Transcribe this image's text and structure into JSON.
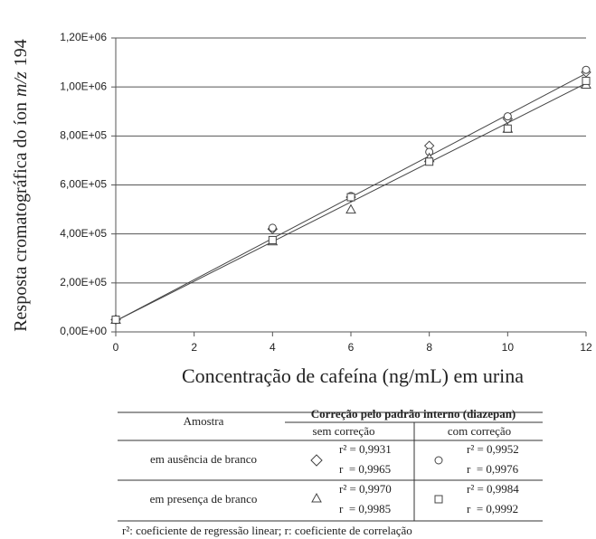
{
  "chart_data": {
    "type": "scatter",
    "y_label": [
      "Resposta cromatográfica do íon",
      "m/z",
      "194"
    ],
    "x_label": "Concentração de cafeína (ng/mL) em urina",
    "x": [
      0,
      4,
      6,
      8,
      10,
      12
    ],
    "series": [
      {
        "marker": "diamond",
        "color": "#444444",
        "values": [
          50000,
          420000,
          550000,
          760000,
          870000,
          1060000
        ]
      },
      {
        "marker": "circle",
        "color": "#444444",
        "values": [
          50000,
          425000,
          555000,
          735000,
          880000,
          1070000
        ]
      },
      {
        "marker": "triangle",
        "color": "#444444",
        "values": [
          50000,
          370000,
          500000,
          710000,
          830000,
          1010000
        ]
      },
      {
        "marker": "square",
        "color": "#444444",
        "values": [
          50000,
          375000,
          550000,
          695000,
          830000,
          1025000
        ]
      }
    ],
    "fit_lines": [
      {
        "x": [
          0,
          12
        ],
        "values": [
          45000,
          1055000
        ]
      },
      {
        "x": [
          0,
          12
        ],
        "values": [
          45000,
          1015000
        ]
      }
    ],
    "xlim": [
      0,
      12
    ],
    "xticks": [
      0,
      2,
      4,
      6,
      8,
      10,
      12
    ],
    "ylim": [
      0,
      1200000
    ],
    "yticks": [
      {
        "value": 0,
        "label": "0,00E+00"
      },
      {
        "value": 200000,
        "label": "2,00E+05"
      },
      {
        "value": 400000,
        "label": "4,00E+05"
      },
      {
        "value": 600000,
        "label": "6,00E+05"
      },
      {
        "value": 800000,
        "label": "8,00E+05"
      },
      {
        "value": 1000000,
        "label": "1,00E+06"
      },
      {
        "value": 1200000,
        "label": "1,20E+06"
      }
    ],
    "grid": true
  },
  "table": {
    "header": {
      "sample": "Amostra",
      "group": "Correção pelo padrão interno (diazepan)",
      "without": "sem correção",
      "with": "com correção"
    },
    "rows": [
      {
        "label": "em ausência de branco",
        "without": [
          "r² = 0,9931",
          "r  = 0,9965"
        ],
        "with": [
          "r² = 0,9952",
          "r  = 0,9976"
        ]
      },
      {
        "label": "em presença de branco",
        "without": [
          "r² = 0,9970",
          "r  = 0,9985"
        ],
        "with": [
          "r² = 0,9984",
          "r  = 0,9992"
        ]
      }
    ],
    "footnote": "r²: coeficiente de regressão linear; r: coeficiente de correlação"
  }
}
